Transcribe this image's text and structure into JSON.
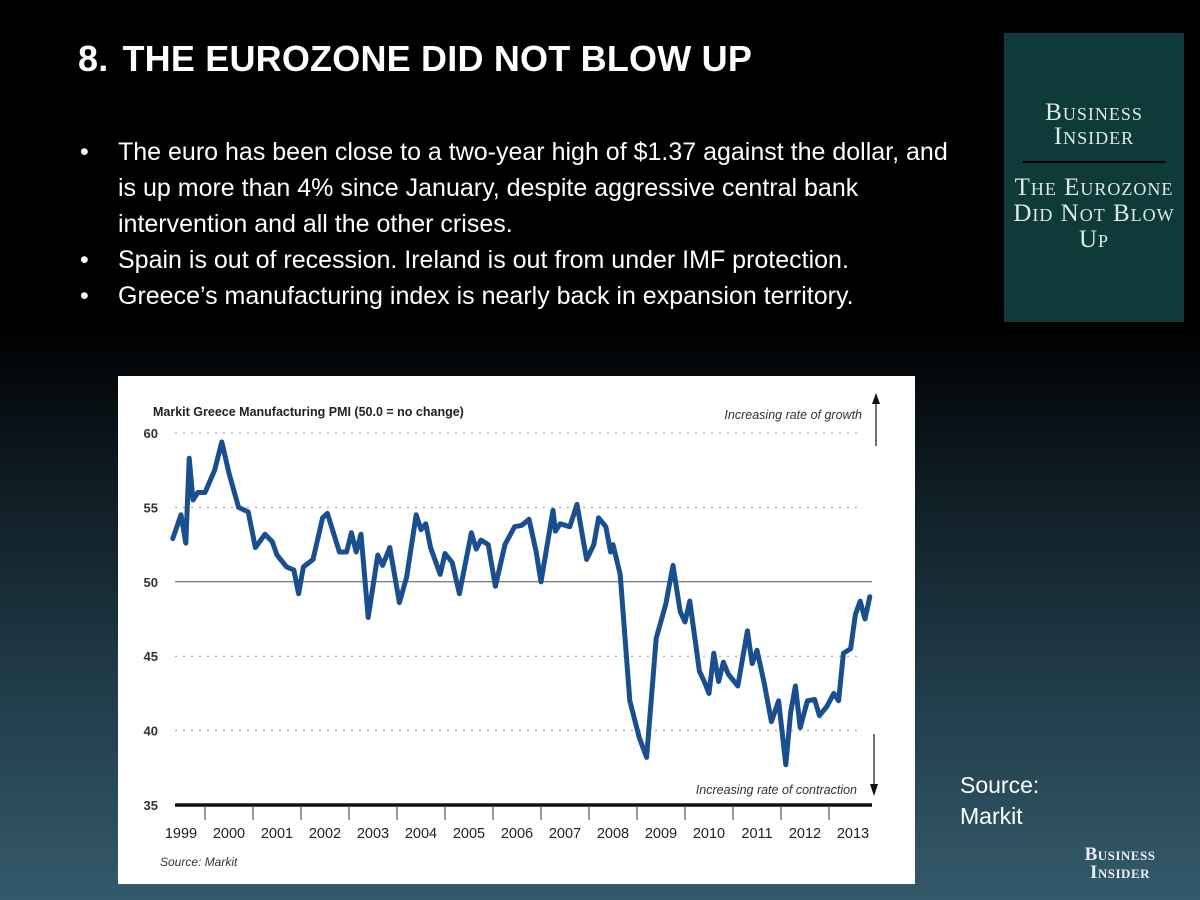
{
  "slide": {
    "number": "8.",
    "title": "THE EUROZONE DID NOT BLOW UP",
    "bullets": [
      "The euro has been close to a two-year high of $1.37 against the dollar, and is up more than 4% since January, despite aggressive central bank intervention and all the other crises.",
      "Spain is out of recession. Ireland is out from under IMF protection.",
      "Greece’s manufacturing index is nearly back in expansion territory."
    ],
    "side_box": {
      "brand": "Business Insider",
      "subtitle": "The Eurozone Did Not Blow Up",
      "color": "#0e3b39"
    },
    "source_side": [
      "Source:",
      "Markit"
    ],
    "logo": "Business Insider"
  },
  "chart_data": {
    "type": "line",
    "title": "Markit Greece Manufacturing PMI (50.0 = no change)",
    "source": "Source: Markit",
    "annotations": {
      "top": "Increasing rate of growth",
      "bottom": "Increasing rate of contraction"
    },
    "ylim": [
      35,
      60
    ],
    "yticks": [
      60,
      55,
      50,
      45,
      40,
      35
    ],
    "reference_line": 50,
    "grid": "dotted horizontal",
    "xtick_labels": [
      "1999",
      "2000",
      "2001",
      "2002",
      "2003",
      "2004",
      "2005",
      "2006",
      "2007",
      "2008",
      "2009",
      "2010",
      "2011",
      "2012",
      "2013"
    ],
    "line_color": "#1a4f8f",
    "series": [
      {
        "x": [
          1999.33,
          1999.5,
          1999.6,
          1999.67,
          1999.75,
          1999.85,
          2000.0,
          2000.2,
          2000.35,
          2000.5,
          2000.7,
          2000.9,
          2001.05,
          2001.25,
          2001.4,
          2001.5,
          2001.7,
          2001.85,
          2001.95,
          2002.05,
          2002.25,
          2002.45,
          2002.55,
          2002.8,
          2002.95,
          2003.05,
          2003.15,
          2003.25,
          2003.4,
          2003.6,
          2003.7,
          2003.85,
          2004.05,
          2004.2,
          2004.4,
          2004.5,
          2004.6,
          2004.7,
          2004.9,
          2005.0,
          2005.15,
          2005.3,
          2005.55,
          2005.65,
          2005.75,
          2005.9,
          2006.05,
          2006.25,
          2006.45,
          2006.6,
          2006.75,
          2006.9,
          2007.0,
          2007.25,
          2007.3,
          2007.4,
          2007.6,
          2007.75,
          2007.95,
          2008.1,
          2008.2,
          2008.35,
          2008.45,
          2008.5,
          2008.65,
          2008.85,
          2009.05,
          2009.2,
          2009.4,
          2009.6,
          2009.75,
          2009.9,
          2010.0,
          2010.1,
          2010.3,
          2010.4,
          2010.5,
          2010.6,
          2010.7,
          2010.8,
          2010.9,
          2011.1,
          2011.3,
          2011.4,
          2011.5,
          2011.65,
          2011.8,
          2011.95,
          2012.1,
          2012.2,
          2012.3,
          2012.4,
          2012.55,
          2012.7,
          2012.8,
          2012.95,
          2013.1,
          2013.2,
          2013.3,
          2013.45,
          2013.55,
          2013.65,
          2013.75,
          2013.85
        ],
        "values": [
          52.9,
          54.5,
          52.6,
          58.3,
          55.5,
          56.0,
          56.0,
          57.5,
          59.4,
          57.3,
          55.0,
          54.7,
          52.3,
          53.2,
          52.7,
          51.8,
          51.0,
          50.8,
          49.2,
          51.0,
          51.5,
          54.3,
          54.6,
          52.0,
          52.0,
          53.3,
          52.0,
          53.2,
          47.6,
          51.8,
          51.1,
          52.3,
          48.6,
          50.3,
          54.5,
          53.5,
          53.9,
          52.3,
          50.5,
          51.9,
          51.3,
          49.2,
          53.3,
          52.2,
          52.8,
          52.5,
          49.7,
          52.5,
          53.7,
          53.8,
          54.2,
          52.0,
          50.0,
          54.8,
          53.4,
          53.9,
          53.7,
          55.2,
          51.5,
          52.5,
          54.3,
          53.7,
          52.0,
          52.5,
          50.5,
          42.0,
          39.5,
          38.2,
          46.2,
          48.5,
          51.1,
          48.0,
          47.3,
          48.7,
          44.0,
          43.3,
          42.5,
          45.2,
          43.3,
          44.6,
          43.8,
          43.0,
          46.7,
          44.5,
          45.4,
          43.2,
          40.6,
          42.0,
          37.7,
          41.2,
          43.0,
          40.2,
          42.0,
          42.1,
          41.0,
          41.6,
          42.5,
          42.0,
          45.2,
          45.5,
          47.8,
          48.7,
          47.5,
          49.0
        ]
      }
    ]
  }
}
